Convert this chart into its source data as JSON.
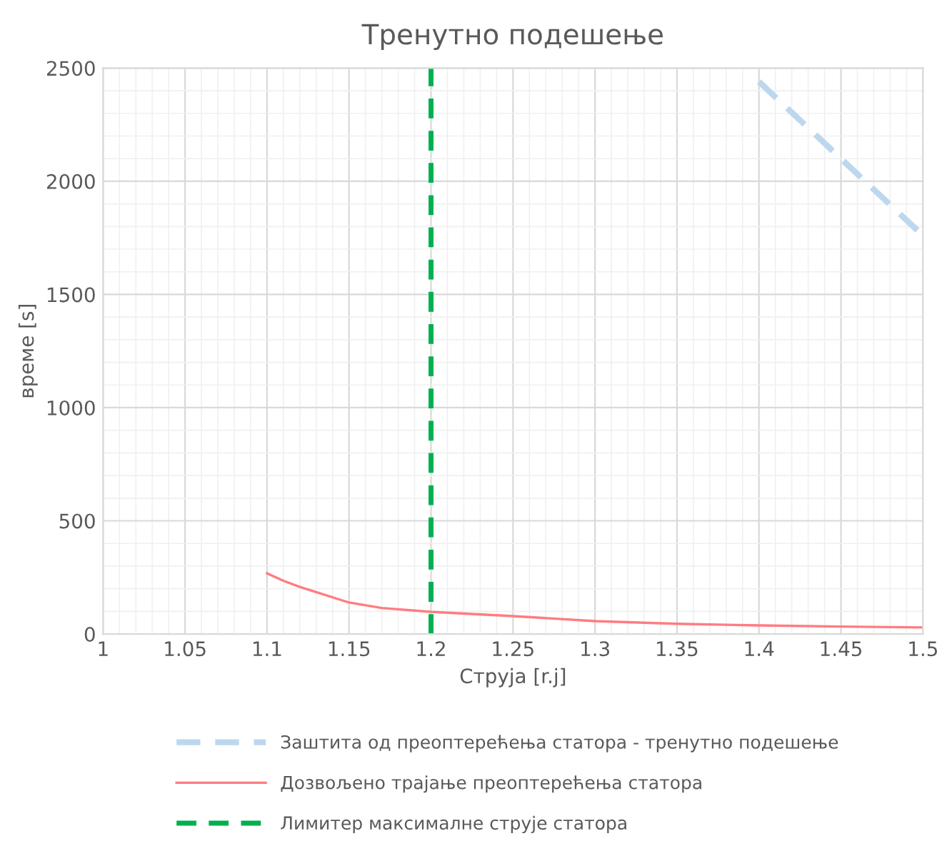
{
  "chart_data": {
    "type": "line",
    "title": "Тренутно подешење",
    "xlabel": "Струја [r.j]",
    "ylabel": "време [s]",
    "xlim": [
      1,
      1.5
    ],
    "xticks": [
      1,
      1.05,
      1.1,
      1.15,
      1.2,
      1.25,
      1.3,
      1.35,
      1.4,
      1.45,
      1.5
    ],
    "ylim": [
      0,
      2500
    ],
    "yticks": [
      0,
      500,
      1000,
      1500,
      2000,
      2500
    ],
    "grid": true,
    "legend": "bottom",
    "series": [
      {
        "name": "Заштита од преоптерећења статора - тренутно подешење",
        "color": "#bdd7ee",
        "line_style": "dashed",
        "x": [
          1.4,
          1.45,
          1.5
        ],
        "values": [
          2440,
          2100,
          1760
        ]
      },
      {
        "name": "Дозвољено трајање преоптерећења статора",
        "color": "#ff7c80",
        "line_style": "solid",
        "x": [
          1.1,
          1.11,
          1.12,
          1.13,
          1.15,
          1.17,
          1.2,
          1.25,
          1.3,
          1.35,
          1.4,
          1.45,
          1.5
        ],
        "values": [
          268,
          235,
          208,
          185,
          139,
          115,
          98,
          79,
          57,
          45,
          38,
          33,
          29
        ]
      }
    ],
    "ref_lines": [
      {
        "axis": "x",
        "value": 1.2,
        "label": "Лимитер максималне струје статора",
        "color": "#00b050",
        "line_style": "dashed"
      }
    ]
  }
}
